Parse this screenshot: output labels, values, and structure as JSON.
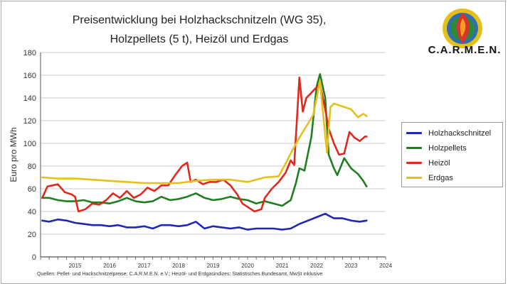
{
  "header": {
    "title_line1": "Preisentwicklung bei Holzhackschnitzeln (WG 35),",
    "title_line2": "Holzpellets (5 t), Heizöl und Erdgas",
    "brand": "C.A.R.M.E.N."
  },
  "legend": {
    "items": [
      {
        "label": "Holzhackschnitzel",
        "color": "#1f27b4"
      },
      {
        "label": "Holzpellets",
        "color": "#1f7f20"
      },
      {
        "label": "Heizöl",
        "color": "#e0281e"
      },
      {
        "label": "Erdgas",
        "color": "#e6c01a"
      }
    ]
  },
  "footer": {
    "source": "Quellen: Pellet- und Hackschnitzelpreise: C.A.R.M.E.N. e.V.; Heizöl- und Erdgasindizes: Statistisches Bundesamt, MwSt inklusive"
  },
  "colors": {
    "logo_red": "#d9342b",
    "logo_green": "#2e8b3a",
    "logo_orange": "#f2a31b",
    "logo_blue": "#2f6db5"
  },
  "chart_data": {
    "type": "line",
    "title": "Preisentwicklung bei Holzhackschnitzeln (WG 35), Holzpellets (5 t), Heizöl und Erdgas",
    "xlabel": "",
    "ylabel": "Euro pro MWh",
    "ylim": [
      0,
      180
    ],
    "yticks": [
      0,
      20,
      40,
      60,
      80,
      100,
      120,
      140,
      160,
      180
    ],
    "xlim": [
      2014.5,
      2024.5
    ],
    "xticklabels": [
      "2015",
      "2016",
      "2017",
      "2018",
      "2019",
      "2020",
      "2021",
      "2022",
      "2023",
      "2024"
    ],
    "grid": "horizontal",
    "legend_position": "right",
    "series": [
      {
        "name": "Holzhackschnitzel",
        "color": "#1f27b4",
        "x": [
          2014.55,
          2014.75,
          2015.0,
          2015.25,
          2015.5,
          2015.75,
          2016.0,
          2016.25,
          2016.5,
          2016.75,
          2017.0,
          2017.25,
          2017.5,
          2017.75,
          2018.0,
          2018.25,
          2018.5,
          2018.75,
          2019.0,
          2019.25,
          2019.5,
          2019.75,
          2020.0,
          2020.25,
          2020.5,
          2020.75,
          2021.0,
          2021.25,
          2021.5,
          2021.75,
          2022.0,
          2022.25,
          2022.5,
          2022.75,
          2023.0,
          2023.25,
          2023.5,
          2023.75,
          2023.95
        ],
        "y": [
          32,
          31,
          33,
          32,
          30,
          29,
          28,
          28,
          27,
          28,
          26,
          26,
          27,
          25,
          28,
          28,
          27,
          28,
          31,
          25,
          27,
          26,
          25,
          26,
          24,
          25,
          25,
          25,
          24,
          25,
          29,
          32,
          35,
          38,
          34,
          34,
          32,
          31,
          32
        ]
      },
      {
        "name": "Holzpellets",
        "color": "#1f7f20",
        "x": [
          2014.55,
          2014.75,
          2015.0,
          2015.25,
          2015.5,
          2015.75,
          2016.0,
          2016.25,
          2016.5,
          2016.75,
          2017.0,
          2017.25,
          2017.5,
          2017.75,
          2018.0,
          2018.25,
          2018.5,
          2018.75,
          2019.0,
          2019.25,
          2019.5,
          2019.75,
          2020.0,
          2020.25,
          2020.5,
          2020.75,
          2021.0,
          2021.25,
          2021.5,
          2021.75,
          2021.9,
          2022.0,
          2022.15,
          2022.35,
          2022.5,
          2022.6,
          2022.75,
          2022.85,
          2023.0,
          2023.1,
          2023.3,
          2023.5,
          2023.7,
          2023.85,
          2023.95
        ],
        "y": [
          52,
          52,
          50,
          49,
          49,
          50,
          48,
          48,
          47,
          49,
          52,
          49,
          48,
          49,
          53,
          50,
          51,
          53,
          56,
          52,
          50,
          51,
          53,
          51,
          50,
          47,
          49,
          47,
          45,
          50,
          65,
          78,
          76,
          106,
          150,
          161,
          140,
          90,
          78,
          72,
          87,
          78,
          73,
          67,
          62
        ]
      },
      {
        "name": "Heizöl",
        "color": "#e0281e",
        "x": [
          2014.55,
          2014.7,
          2014.85,
          2015.0,
          2015.2,
          2015.4,
          2015.5,
          2015.6,
          2015.8,
          2016.0,
          2016.2,
          2016.4,
          2016.6,
          2016.8,
          2017.0,
          2017.2,
          2017.4,
          2017.6,
          2017.8,
          2018.0,
          2018.2,
          2018.4,
          2018.6,
          2018.75,
          2018.85,
          2019.0,
          2019.2,
          2019.4,
          2019.6,
          2019.8,
          2020.0,
          2020.2,
          2020.35,
          2020.5,
          2020.7,
          2020.9,
          2021.0,
          2021.2,
          2021.4,
          2021.6,
          2021.75,
          2021.85,
          2022.0,
          2022.1,
          2022.2,
          2022.3,
          2022.45,
          2022.6,
          2022.75,
          2022.85,
          2023.0,
          2023.15,
          2023.3,
          2023.45,
          2023.6,
          2023.75,
          2023.9,
          2023.95
        ],
        "y": [
          52,
          62,
          63,
          64,
          57,
          55,
          53,
          40,
          42,
          47,
          46,
          50,
          56,
          52,
          58,
          52,
          55,
          61,
          58,
          63,
          63,
          72,
          80,
          83,
          66,
          68,
          64,
          66,
          66,
          68,
          63,
          55,
          47,
          44,
          40,
          42,
          52,
          60,
          66,
          74,
          85,
          81,
          158,
          128,
          140,
          143,
          148,
          152,
          130,
          113,
          100,
          90,
          91,
          110,
          105,
          102,
          106,
          106
        ]
      },
      {
        "name": "Erdgas",
        "color": "#e6c01a",
        "x": [
          2014.55,
          2015.0,
          2015.5,
          2016.0,
          2016.5,
          2017.0,
          2017.5,
          2018.0,
          2018.5,
          2019.0,
          2019.5,
          2020.0,
          2020.5,
          2021.0,
          2021.4,
          2021.6,
          2021.8,
          2022.0,
          2022.2,
          2022.4,
          2022.5,
          2022.6,
          2022.7,
          2022.8,
          2022.9,
          2023.0,
          2023.2,
          2023.5,
          2023.7,
          2023.85,
          2023.95
        ],
        "y": [
          70,
          69,
          69,
          68,
          67,
          66,
          65,
          65,
          65,
          67,
          68,
          68,
          66,
          70,
          71,
          82,
          94,
          105,
          115,
          125,
          140,
          155,
          122,
          92,
          132,
          135,
          133,
          130,
          123,
          126,
          124
        ]
      }
    ]
  }
}
